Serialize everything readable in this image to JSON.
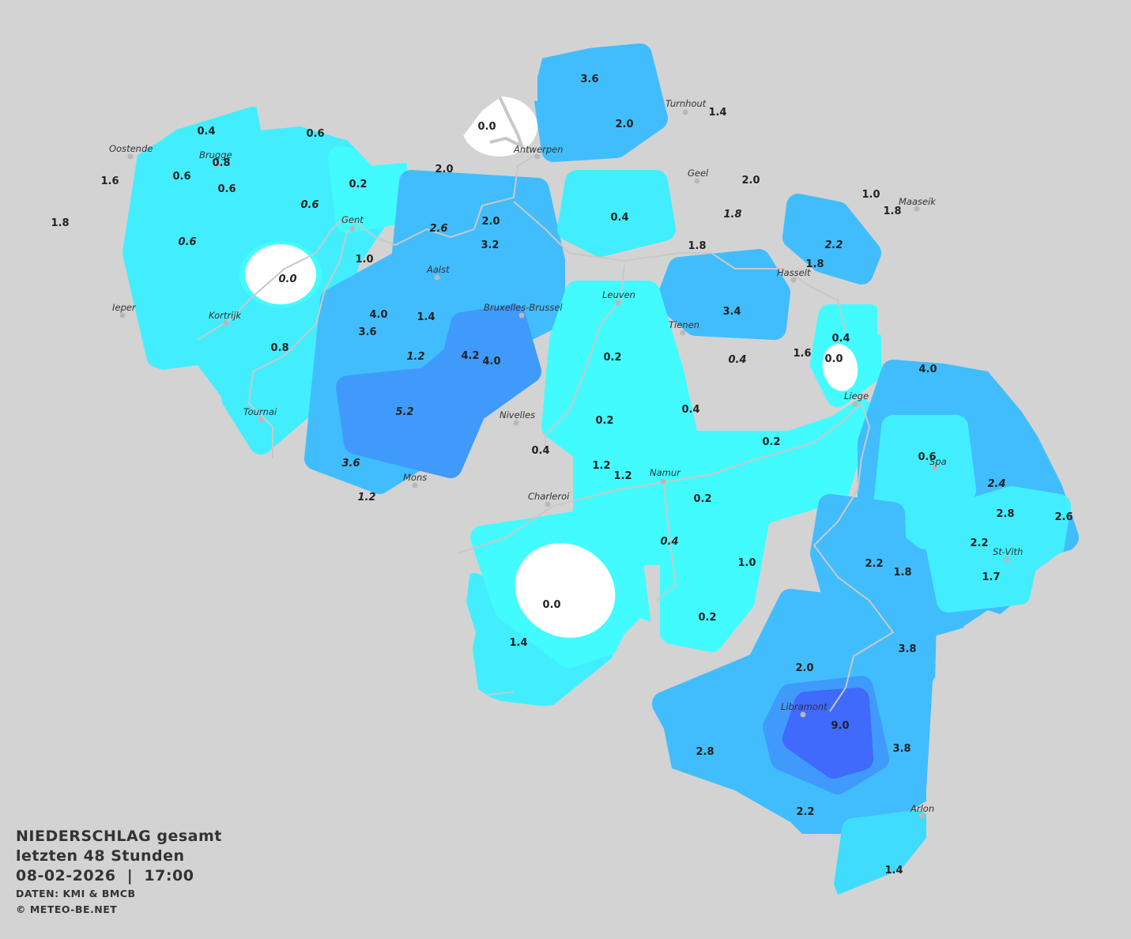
{
  "title": {
    "line1": "NIEDERSCHLAG gesamt",
    "line2": "letzten 48 Stunden",
    "datetime": "08-02-2026  |  17:00",
    "source": "DATEN: KMI & BMCB",
    "copyright": "© METEO-BE.NET"
  },
  "colors": {
    "background": "#d3d3d3",
    "lvl0": "#ffffff",
    "lvl1": "#42fbff",
    "lvl2": "#42eefe",
    "lvl3": "#40dcfe",
    "lvl4": "#41bdfd",
    "lvl5": "#3f9afc",
    "lvl6": "#3f6afc",
    "river": "#c8c8c8"
  },
  "cities": [
    "Oostende",
    "Brugge",
    "Antwerpen",
    "Turnhout",
    "Geel",
    "Maaseik",
    "Gent",
    "Aalst",
    "Hasselt",
    "Leuven",
    "Bruxelles-Brussel",
    "Ieper",
    "Kortrijk",
    "Tienen",
    "Liege",
    "Tournai",
    "Nivelles",
    "Spa",
    "Mons",
    "Namur",
    "Charleroi",
    "St-Vith",
    "Libramont",
    "Arlon"
  ],
  "values": [
    {
      "v": "0.4",
      "it": false
    },
    {
      "v": "0.6",
      "it": false
    },
    {
      "v": "0.8",
      "it": false
    },
    {
      "v": "1.6",
      "it": false
    },
    {
      "v": "0.6",
      "it": false
    },
    {
      "v": "0.6",
      "it": false
    },
    {
      "v": "1.8",
      "it": false
    },
    {
      "v": "0.6",
      "it": true
    },
    {
      "v": "0.2",
      "it": false
    },
    {
      "v": "0.6",
      "it": true
    },
    {
      "v": "0.0",
      "it": true
    },
    {
      "v": "1.0",
      "it": false
    },
    {
      "v": "0.0",
      "it": false
    },
    {
      "v": "2.0",
      "it": false
    },
    {
      "v": "2.6",
      "it": true
    },
    {
      "v": "2.0",
      "it": false
    },
    {
      "v": "3.2",
      "it": false
    },
    {
      "v": "3.6",
      "it": false
    },
    {
      "v": "2.0",
      "it": false
    },
    {
      "v": "1.4",
      "it": false
    },
    {
      "v": "2.0",
      "it": false
    },
    {
      "v": "0.4",
      "it": false
    },
    {
      "v": "1.8",
      "it": true
    },
    {
      "v": "1.0",
      "it": false
    },
    {
      "v": "1.8",
      "it": false
    },
    {
      "v": "2.2",
      "it": true
    },
    {
      "v": "1.8",
      "it": false
    },
    {
      "v": "1.8",
      "it": false
    },
    {
      "v": "4.0",
      "it": false
    },
    {
      "v": "3.6",
      "it": false
    },
    {
      "v": "1.4",
      "it": false
    },
    {
      "v": "0.8",
      "it": false
    },
    {
      "v": "1.2",
      "it": true
    },
    {
      "v": "4.2",
      "it": false
    },
    {
      "v": "4.0",
      "it": false
    },
    {
      "v": "5.2",
      "it": true
    },
    {
      "v": "3.4",
      "it": false
    },
    {
      "v": "0.2",
      "it": false
    },
    {
      "v": "0.4",
      "it": true
    },
    {
      "v": "1.6",
      "it": false
    },
    {
      "v": "0.4",
      "it": false
    },
    {
      "v": "0.0",
      "it": false
    },
    {
      "v": "4.0",
      "it": false
    },
    {
      "v": "0.4",
      "it": false
    },
    {
      "v": "0.2",
      "it": false
    },
    {
      "v": "0.4",
      "it": false
    },
    {
      "v": "0.2",
      "it": false
    },
    {
      "v": "3.6",
      "it": true
    },
    {
      "v": "1.2",
      "it": true
    },
    {
      "v": "1.2",
      "it": false
    },
    {
      "v": "1.2",
      "it": false
    },
    {
      "v": "0.2",
      "it": false
    },
    {
      "v": "0.6",
      "it": false
    },
    {
      "v": "2.4",
      "it": true
    },
    {
      "v": "2.8",
      "it": false
    },
    {
      "v": "2.6",
      "it": false
    },
    {
      "v": "2.2",
      "it": false
    },
    {
      "v": "1.7",
      "it": false
    },
    {
      "v": "0.4",
      "it": true
    },
    {
      "v": "2.2",
      "it": false
    },
    {
      "v": "1.8",
      "it": false
    },
    {
      "v": "1.0",
      "it": false
    },
    {
      "v": "0.0",
      "it": false
    },
    {
      "v": "0.2",
      "it": false
    },
    {
      "v": "1.4",
      "it": false
    },
    {
      "v": "3.8",
      "it": false
    },
    {
      "v": "2.0",
      "it": false
    },
    {
      "v": "9.0",
      "it": false
    },
    {
      "v": "3.8",
      "it": false
    },
    {
      "v": "2.8",
      "it": false
    },
    {
      "v": "2.2",
      "it": false
    },
    {
      "v": "1.4",
      "it": false
    }
  ]
}
